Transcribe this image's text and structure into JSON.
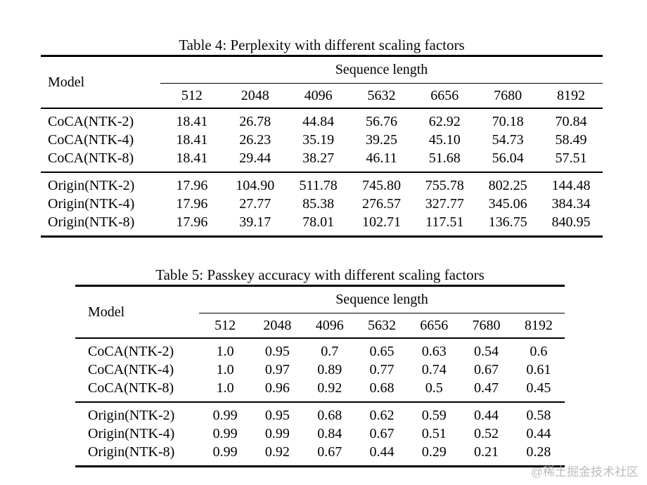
{
  "page": {
    "background": "#ffffff",
    "text_color": "#000000",
    "watermark": "@稀土掘金技术社区"
  },
  "tables": [
    {
      "caption": "Table 4: Perplexity with different scaling factors",
      "model_header": "Model",
      "group_header": "Sequence length",
      "columns": [
        "512",
        "2048",
        "4096",
        "5632",
        "6656",
        "7680",
        "8192"
      ],
      "groups": [
        {
          "rows": [
            {
              "model": "CoCA(NTK-2)",
              "values": [
                "18.41",
                "26.78",
                "44.84",
                "56.76",
                "62.92",
                "70.18",
                "70.84"
              ]
            },
            {
              "model": "CoCA(NTK-4)",
              "values": [
                "18.41",
                "26.23",
                "35.19",
                "39.25",
                "45.10",
                "54.73",
                "58.49"
              ]
            },
            {
              "model": "CoCA(NTK-8)",
              "values": [
                "18.41",
                "29.44",
                "38.27",
                "46.11",
                "51.68",
                "56.04",
                "57.51"
              ]
            }
          ]
        },
        {
          "rows": [
            {
              "model": "Origin(NTK-2)",
              "values": [
                "17.96",
                "104.90",
                "511.78",
                "745.80",
                "755.78",
                "802.25",
                "144.48"
              ]
            },
            {
              "model": "Origin(NTK-4)",
              "values": [
                "17.96",
                "27.77",
                "85.38",
                "276.57",
                "327.77",
                "345.06",
                "384.34"
              ]
            },
            {
              "model": "Origin(NTK-8)",
              "values": [
                "17.96",
                "39.17",
                "78.01",
                "102.71",
                "117.51",
                "136.75",
                "840.95"
              ]
            }
          ]
        }
      ]
    },
    {
      "caption": "Table 5: Passkey accuracy with different scaling factors",
      "model_header": "Model",
      "group_header": "Sequence length",
      "columns": [
        "512",
        "2048",
        "4096",
        "5632",
        "6656",
        "7680",
        "8192"
      ],
      "groups": [
        {
          "rows": [
            {
              "model": "CoCA(NTK-2)",
              "values": [
                "1.0",
                "0.95",
                "0.7",
                "0.65",
                "0.63",
                "0.54",
                "0.6"
              ]
            },
            {
              "model": "CoCA(NTK-4)",
              "values": [
                "1.0",
                "0.97",
                "0.89",
                "0.77",
                "0.74",
                "0.67",
                "0.61"
              ]
            },
            {
              "model": "CoCA(NTK-8)",
              "values": [
                "1.0",
                "0.96",
                "0.92",
                "0.68",
                "0.5",
                "0.47",
                "0.45"
              ]
            }
          ]
        },
        {
          "rows": [
            {
              "model": "Origin(NTK-2)",
              "values": [
                "0.99",
                "0.95",
                "0.68",
                "0.62",
                "0.59",
                "0.44",
                "0.58"
              ]
            },
            {
              "model": "Origin(NTK-4)",
              "values": [
                "0.99",
                "0.99",
                "0.84",
                "0.67",
                "0.51",
                "0.52",
                "0.44"
              ]
            },
            {
              "model": "Origin(NTK-8)",
              "values": [
                "0.99",
                "0.92",
                "0.67",
                "0.44",
                "0.29",
                "0.21",
                "0.28"
              ]
            }
          ]
        }
      ]
    }
  ]
}
